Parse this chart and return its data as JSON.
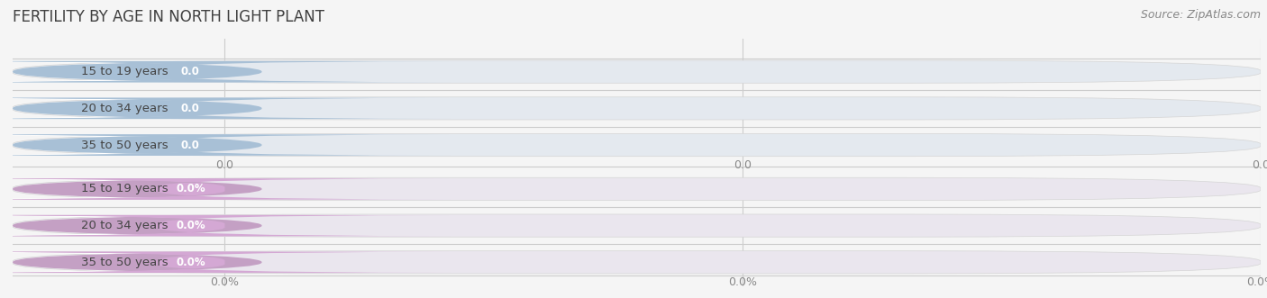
{
  "title": "FERTILITY BY AGE IN NORTH LIGHT PLANT",
  "source": "Source: ZipAtlas.com",
  "top_group": {
    "labels": [
      "15 to 19 years",
      "20 to 34 years",
      "35 to 50 years"
    ],
    "values": [
      0.0,
      0.0,
      0.0
    ],
    "bar_accent": "#a8c0d6",
    "bar_bg": "#e4e9ef",
    "value_pill_color": "#a8c0d6",
    "label_text_color": "#444444",
    "value_text_color": "#ffffff",
    "tick_label_suffix": ""
  },
  "bottom_group": {
    "labels": [
      "15 to 19 years",
      "20 to 34 years",
      "35 to 50 years"
    ],
    "values": [
      0.0,
      0.0,
      0.0
    ],
    "bar_accent": "#c4a0c4",
    "bar_bg": "#eae6ee",
    "value_pill_color": "#d4a8d4",
    "label_text_color": "#444444",
    "value_text_color": "#ffffff",
    "tick_label_suffix": "%"
  },
  "background_color": "#f5f5f5",
  "chart_bg": "#f0f0f0",
  "title_color": "#404040",
  "source_color": "#888888",
  "title_fontsize": 12,
  "source_fontsize": 9,
  "label_fontsize": 9.5,
  "value_fontsize": 8.5,
  "tick_fontsize": 9
}
